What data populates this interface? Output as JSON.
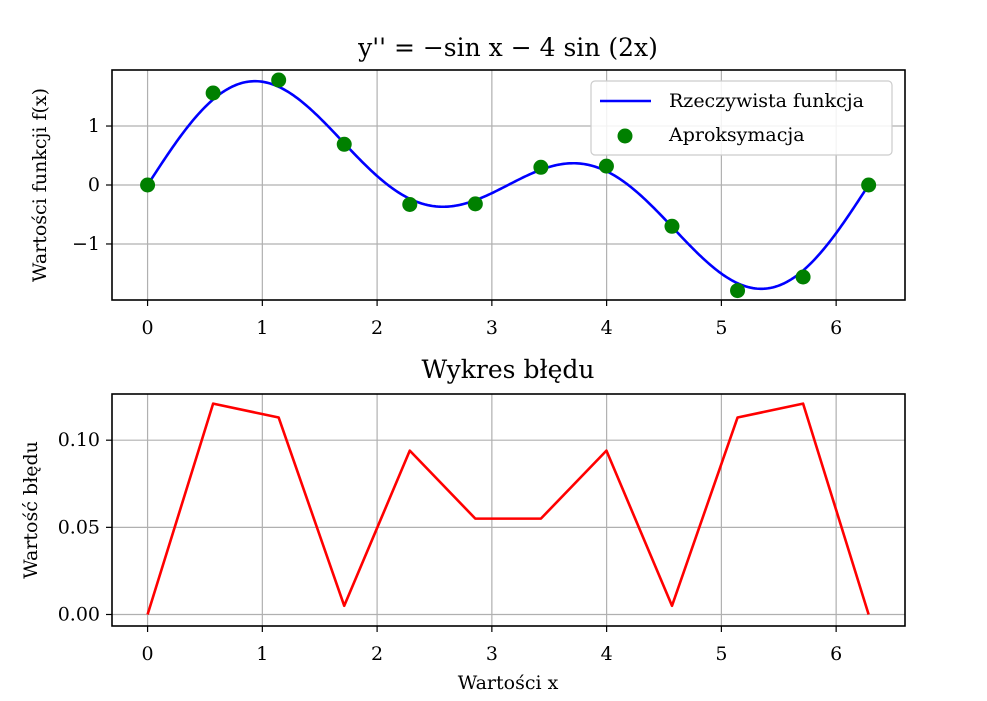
{
  "chart_data": [
    {
      "type": "line",
      "title": "y'' = −sin x − 4 sin (2x)",
      "xlabel": "",
      "ylabel": "Wartości funkcji f(x)",
      "xlim": [
        -0.31,
        6.6
      ],
      "ylim": [
        -1.95,
        1.95
      ],
      "xticks": [
        0,
        1,
        2,
        3,
        4,
        5,
        6
      ],
      "xtick_labels": [
        "0",
        "1",
        "2",
        "3",
        "4",
        "5",
        "6"
      ],
      "yticks": [
        -1,
        0,
        1
      ],
      "ytick_labels": [
        "−1",
        "0",
        "1"
      ],
      "grid": true,
      "legend_position": "top-right",
      "series": [
        {
          "name": "Rzeczywista funkcja",
          "kind": "line",
          "color": "#0000ff",
          "expression": "sin(x) + sin(2x)",
          "x_range": [
            0,
            6.2832
          ]
        },
        {
          "name": "Aproksymacja",
          "kind": "scatter",
          "color": "#008000",
          "x": [
            0.0,
            0.5712,
            1.1424,
            1.7136,
            2.2848,
            2.856,
            3.4272,
            3.9984,
            4.5696,
            5.1408,
            5.712,
            6.2832
          ],
          "y": [
            0.0,
            1.56,
            1.78,
            0.69,
            -0.33,
            -0.32,
            0.3,
            0.32,
            -0.7,
            -1.79,
            -1.56,
            0.0
          ]
        }
      ]
    },
    {
      "type": "line",
      "title": "Wykres błędu",
      "xlabel": "Wartości x",
      "ylabel": "Wartość błędu",
      "xlim": [
        -0.31,
        6.6
      ],
      "ylim": [
        -0.0066,
        0.1265
      ],
      "xticks": [
        0,
        1,
        2,
        3,
        4,
        5,
        6
      ],
      "xtick_labels": [
        "0",
        "1",
        "2",
        "3",
        "4",
        "5",
        "6"
      ],
      "yticks": [
        0.0,
        0.05,
        0.1
      ],
      "ytick_labels": [
        "0.00",
        "0.05",
        "0.10"
      ],
      "grid": true,
      "series": [
        {
          "kind": "line",
          "color": "#ff0000",
          "x": [
            0.0,
            0.5712,
            1.1424,
            1.7136,
            2.2848,
            2.856,
            3.4272,
            3.9984,
            4.5696,
            5.1408,
            5.712,
            6.2832
          ],
          "y": [
            0.0,
            0.121,
            0.113,
            0.005,
            0.094,
            0.055,
            0.055,
            0.094,
            0.005,
            0.113,
            0.121,
            0.0
          ]
        }
      ]
    }
  ]
}
